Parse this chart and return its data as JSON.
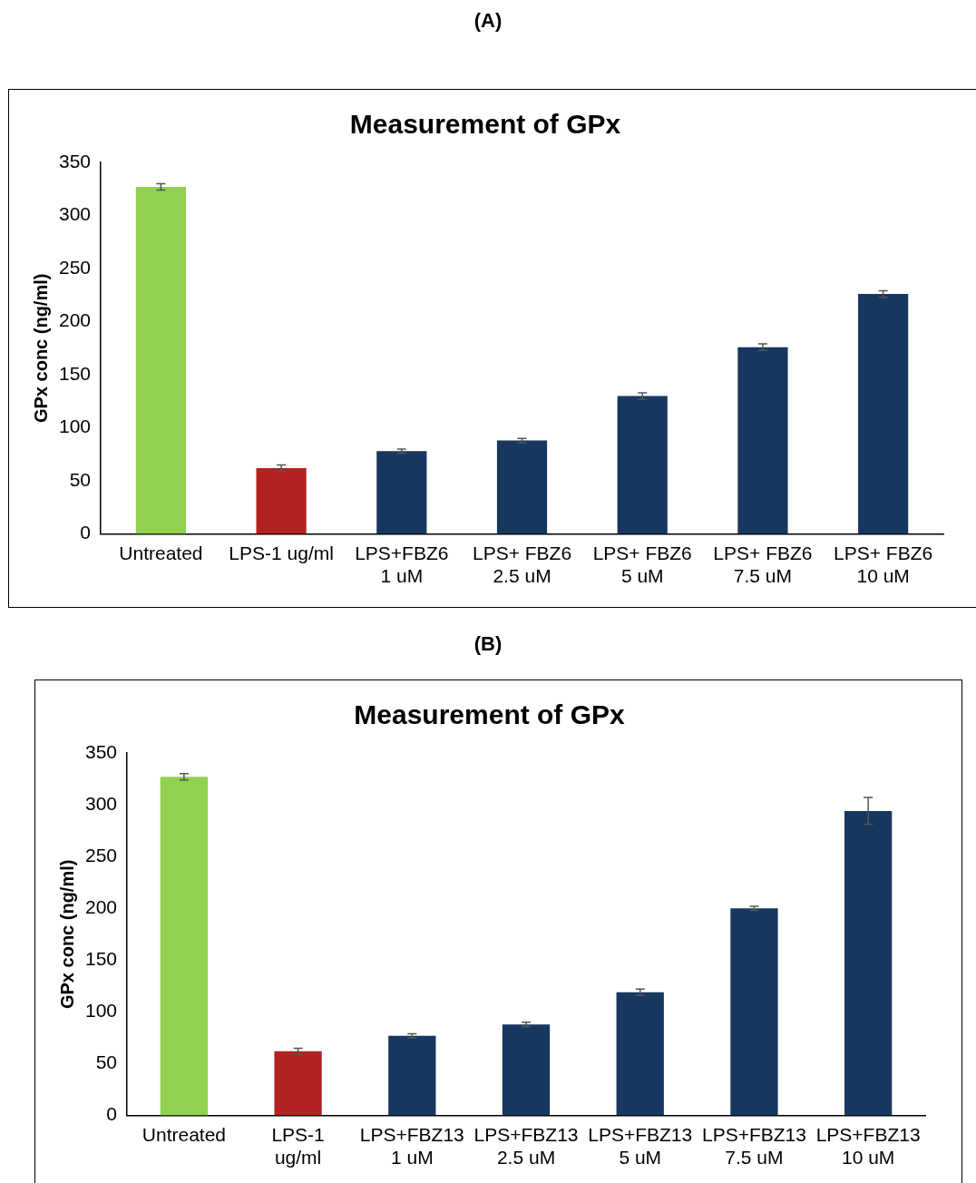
{
  "chart_data": [
    {
      "type": "bar",
      "title": "Measurement of GPx",
      "annotations": [
        "(A)"
      ],
      "ylabel": "GPx conc (ng/ml)",
      "categories": [
        "Untreated",
        "LPS-1 ug/ml",
        "LPS+FBZ6\n1 uM",
        "LPS+ FBZ6\n2.5 uM",
        "LPS+ FBZ6\n5 uM",
        "LPS+ FBZ6\n7.5 uM",
        "LPS+ FBZ6\n10 uM"
      ],
      "values": [
        327,
        62,
        78,
        88,
        130,
        176,
        226
      ],
      "errors": [
        3,
        3,
        2,
        2,
        3,
        3,
        3
      ],
      "colors": [
        "#92d050",
        "#b22222",
        "#17375e",
        "#17375e",
        "#17375e",
        "#17375e",
        "#17375e"
      ],
      "ylim": [
        0,
        350
      ],
      "yticks": [
        0,
        50,
        100,
        150,
        200,
        250,
        300,
        350
      ],
      "grid": false,
      "legend": false
    },
    {
      "type": "bar",
      "title": "Measurement of GPx",
      "annotations": [
        "(B)"
      ],
      "ylabel": "GPx conc (ng/ml)",
      "categories": [
        "Untreated",
        "LPS-1\nug/ml",
        "LPS+FBZ13\n1 uM",
        "LPS+FBZ13\n2.5 uM",
        "LPS+FBZ13\n5 uM",
        "LPS+FBZ13\n7.5 uM",
        "LPS+FBZ13\n10 uM"
      ],
      "values": [
        327,
        62,
        77,
        88,
        119,
        200,
        294
      ],
      "errors": [
        3,
        3,
        2,
        2,
        3,
        2,
        13
      ],
      "colors": [
        "#92d050",
        "#b22222",
        "#17375e",
        "#17375e",
        "#17375e",
        "#17375e",
        "#17375e"
      ],
      "ylim": [
        0,
        350
      ],
      "yticks": [
        0,
        50,
        100,
        150,
        200,
        250,
        300,
        350
      ],
      "grid": false,
      "legend": false
    }
  ]
}
